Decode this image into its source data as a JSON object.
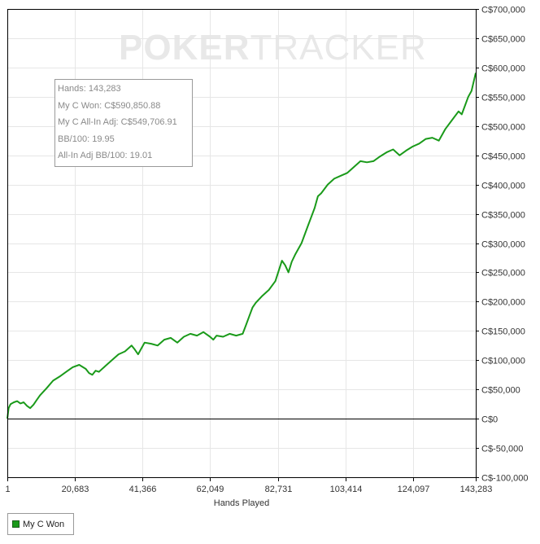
{
  "watermark": {
    "bold": "POKER",
    "light": "TRACKER"
  },
  "tooltip": {
    "hands": "Hands: 143,283",
    "won": "My C Won: C$590,850.88",
    "allin_adj": "My C All-In Adj: C$549,706.91",
    "bb100": "BB/100: 19.95",
    "allin_bb100": "All-In Adj BB/100: 19.01"
  },
  "legend": {
    "label": "My C Won",
    "color": "#1a9a1a"
  },
  "colors": {
    "line": "#1a9a1a",
    "grid": "#e6e6e6",
    "zero_line": "#000000"
  },
  "chart_data": {
    "type": "line",
    "xlabel": "Hands Played",
    "ylabel": "",
    "xlim": [
      1,
      143283
    ],
    "ylim": [
      -100000,
      700000
    ],
    "x_ticks": [
      1,
      20683,
      41366,
      62049,
      82731,
      103414,
      124097,
      143283
    ],
    "x_tick_labels": [
      "1",
      "20,683",
      "41,366",
      "62,049",
      "82,731",
      "103,414",
      "124,097",
      "143,283"
    ],
    "y_ticks": [
      -100000,
      -50000,
      0,
      50000,
      100000,
      150000,
      200000,
      250000,
      300000,
      350000,
      400000,
      450000,
      500000,
      550000,
      600000,
      650000,
      700000
    ],
    "y_tick_labels": [
      "C$-100,000",
      "C$-50,000",
      "C$0",
      "C$50,000",
      "C$100,000",
      "C$150,000",
      "C$200,000",
      "C$250,000",
      "C$300,000",
      "C$350,000",
      "C$400,000",
      "C$450,000",
      "C$500,000",
      "C$550,000",
      "C$600,000",
      "C$650,000",
      "C$700,000"
    ],
    "grid": true,
    "legend_position": "bottom-left",
    "series": [
      {
        "name": "My C Won",
        "x": [
          1,
          400,
          1000,
          2000,
          3000,
          4000,
          5000,
          6000,
          7000,
          8000,
          9000,
          10000,
          12000,
          14000,
          16000,
          18000,
          20000,
          22000,
          24000,
          25000,
          26000,
          27000,
          28000,
          30000,
          32000,
          34000,
          36000,
          38000,
          39000,
          40000,
          41000,
          42000,
          44000,
          46000,
          48000,
          50000,
          52000,
          54000,
          56000,
          58000,
          60000,
          62000,
          63000,
          64000,
          66000,
          68000,
          70000,
          72000,
          73000,
          74000,
          75000,
          76000,
          78000,
          80000,
          82000,
          84000,
          85000,
          86000,
          87000,
          88000,
          90000,
          92000,
          94000,
          95000,
          96000,
          98000,
          100000,
          102000,
          104000,
          106000,
          108000,
          110000,
          112000,
          114000,
          116000,
          118000,
          120000,
          122000,
          124000,
          126000,
          128000,
          130000,
          132000,
          134000,
          136000,
          138000,
          139000,
          140000,
          141000,
          142000,
          143283
        ],
        "y": [
          0,
          18000,
          25000,
          28000,
          30000,
          26000,
          28000,
          22000,
          18000,
          24000,
          32000,
          40000,
          52000,
          65000,
          72000,
          80000,
          88000,
          92000,
          85000,
          78000,
          75000,
          82000,
          80000,
          90000,
          100000,
          110000,
          115000,
          125000,
          118000,
          110000,
          120000,
          130000,
          128000,
          125000,
          135000,
          138000,
          130000,
          140000,
          145000,
          142000,
          148000,
          140000,
          135000,
          142000,
          140000,
          145000,
          142000,
          145000,
          160000,
          175000,
          190000,
          198000,
          210000,
          220000,
          235000,
          270000,
          262000,
          250000,
          268000,
          280000,
          300000,
          330000,
          360000,
          380000,
          385000,
          400000,
          410000,
          415000,
          420000,
          430000,
          440000,
          438000,
          440000,
          448000,
          455000,
          460000,
          450000,
          458000,
          465000,
          470000,
          478000,
          480000,
          475000,
          495000,
          510000,
          525000,
          520000,
          535000,
          550000,
          560000,
          590850.88
        ]
      }
    ]
  }
}
